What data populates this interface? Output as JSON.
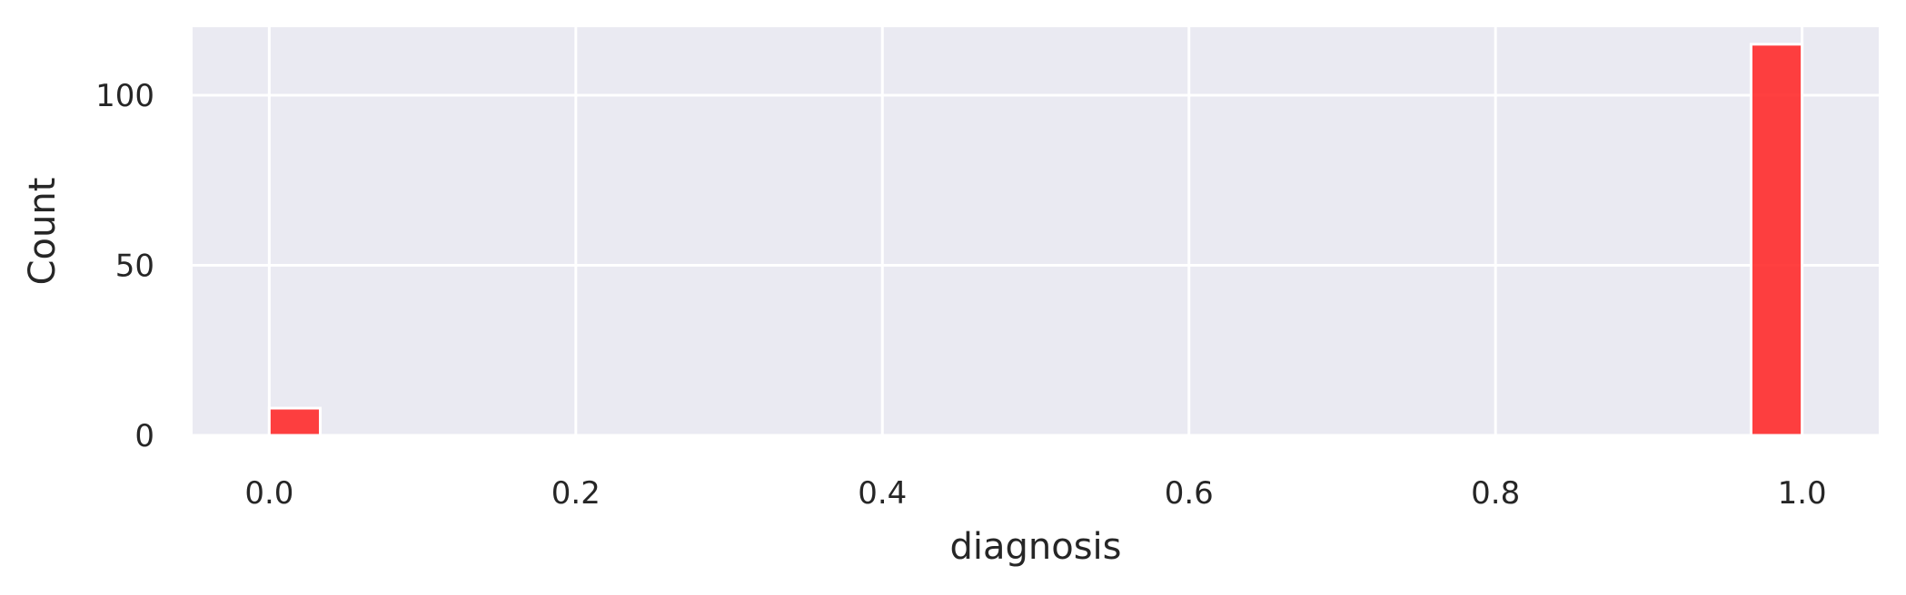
{
  "chart_data": {
    "type": "bar",
    "subtype": "histogram",
    "xlabel": "diagnosis",
    "ylabel": "Count",
    "xlim": [
      -0.05,
      1.05
    ],
    "ylim": [
      0,
      120
    ],
    "x_ticks": [
      0.0,
      0.2,
      0.4,
      0.6,
      0.8,
      1.0
    ],
    "x_tick_labels": [
      "0.0",
      "0.2",
      "0.4",
      "0.6",
      "0.8",
      "1.0"
    ],
    "y_ticks": [
      0,
      50,
      100
    ],
    "y_tick_labels": [
      "0",
      "50",
      "100"
    ],
    "grid": true,
    "bin_width": 0.0333,
    "bins": [
      {
        "x_start": 0.0,
        "x_end": 0.0333,
        "count": 8
      },
      {
        "x_start": 0.9667,
        "x_end": 1.0,
        "count": 115
      }
    ],
    "bar_color": "#ff2b2b",
    "background_color": "#eaeaf2",
    "grid_color": "#ffffff"
  }
}
